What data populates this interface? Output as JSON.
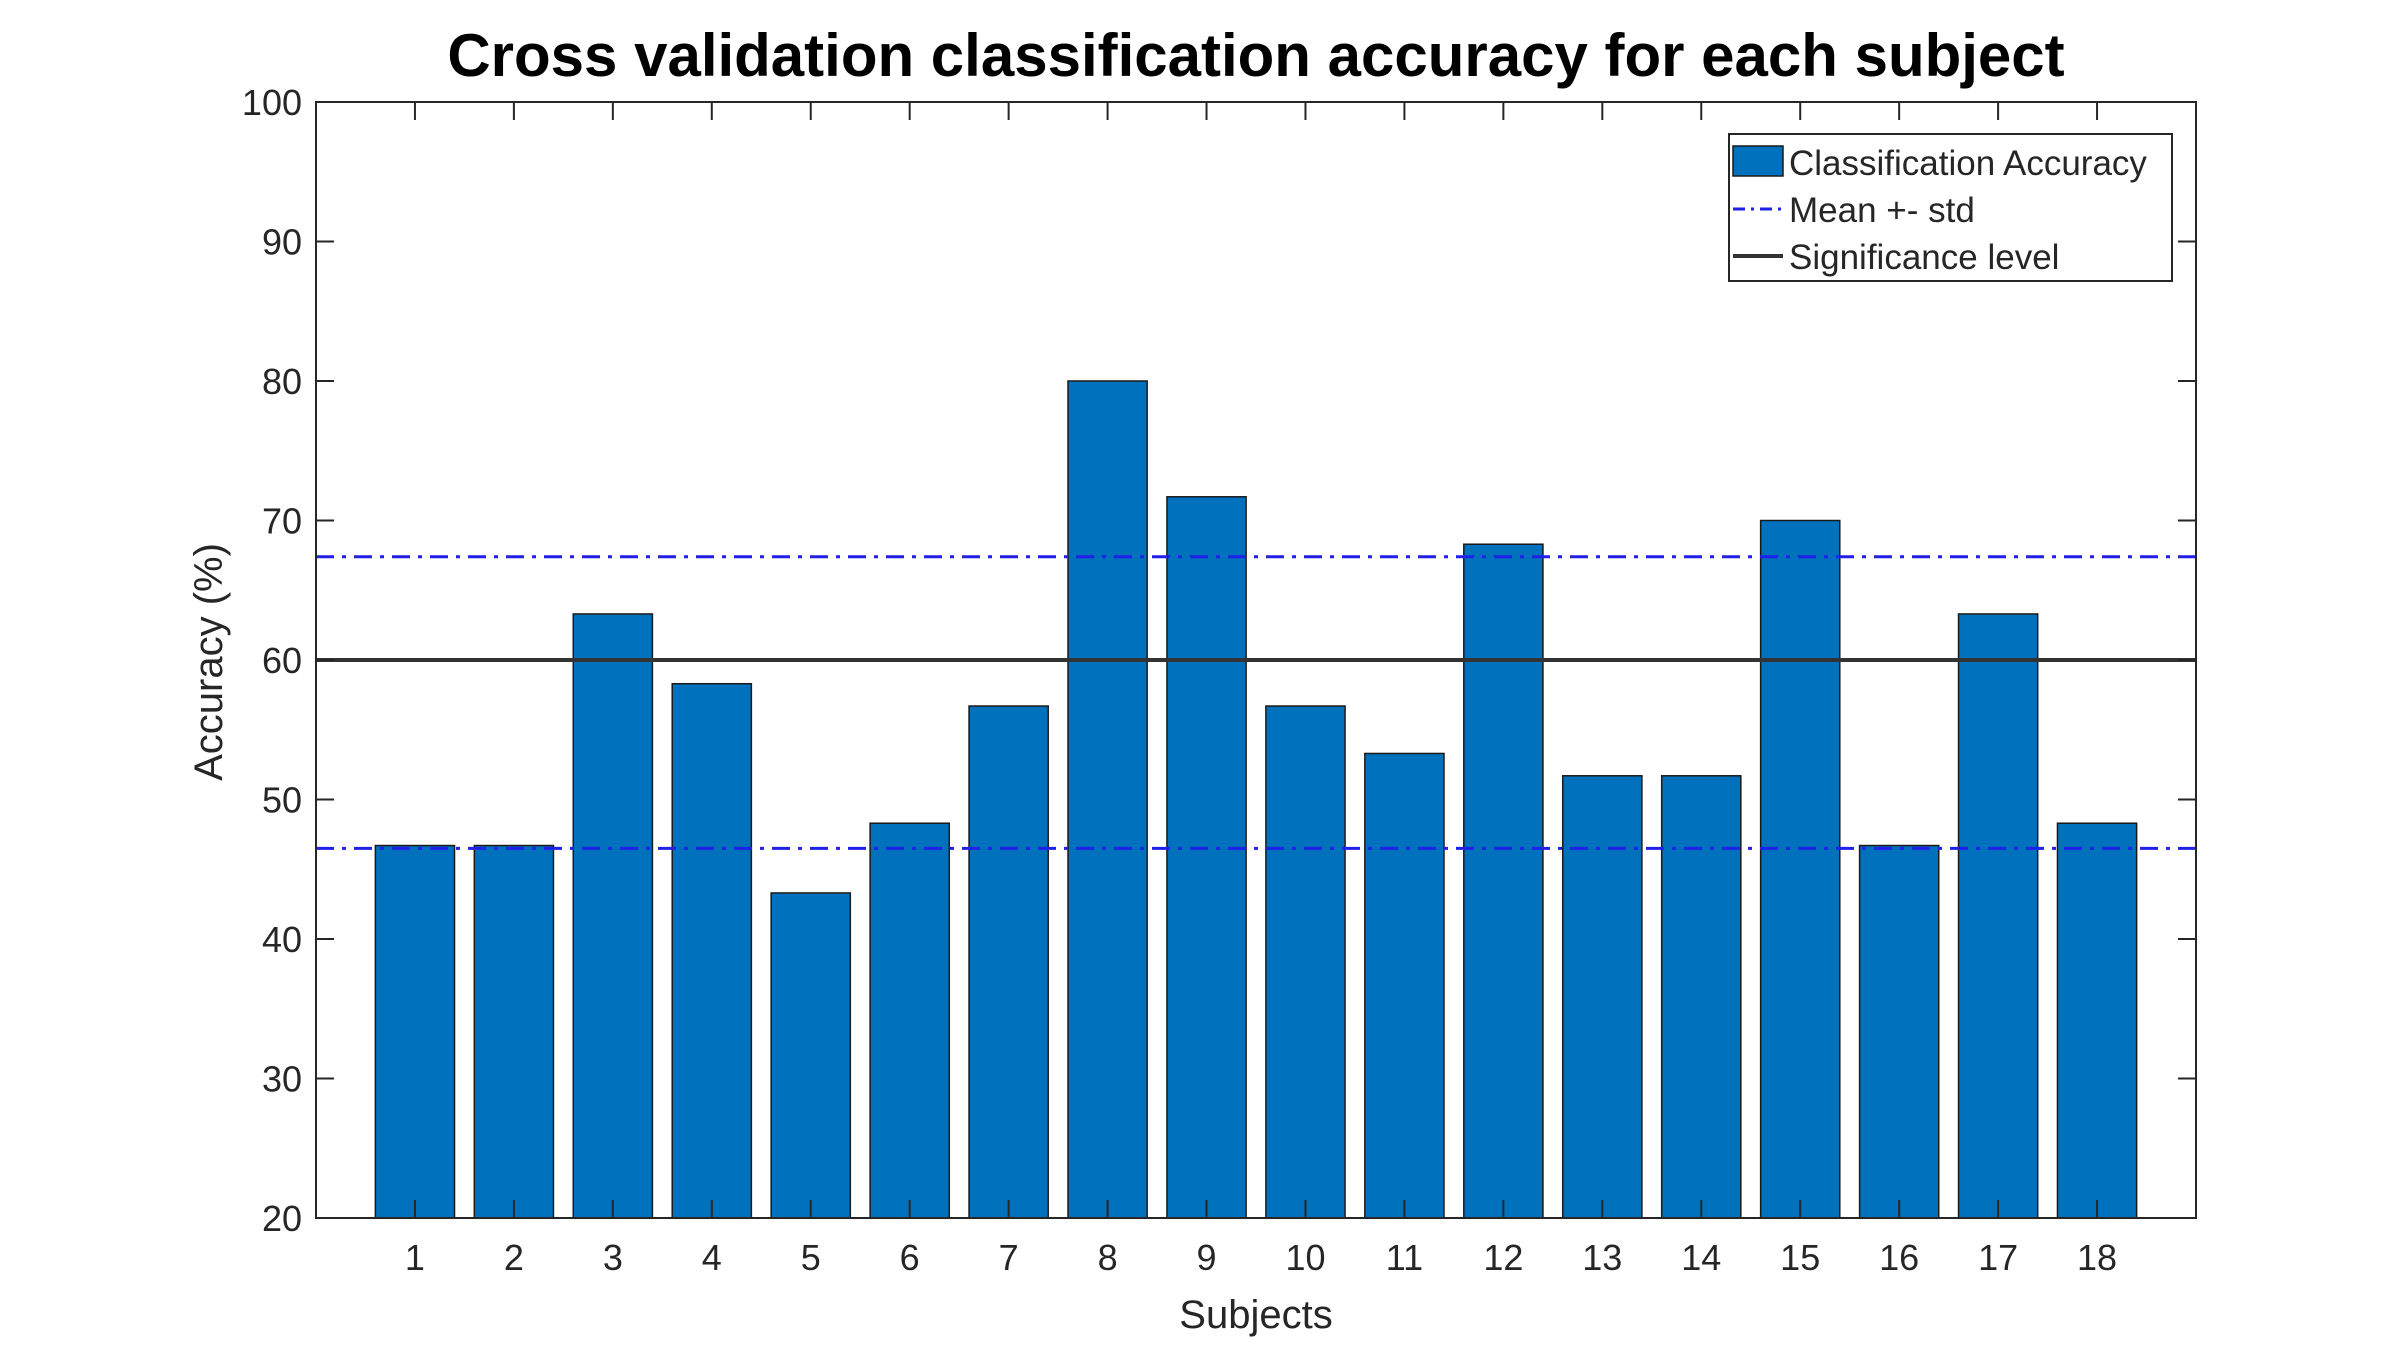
{
  "chart_data": {
    "type": "bar",
    "title": "Cross validation classification accuracy for each subject",
    "xlabel": "Subjects",
    "ylabel": "Accuracy (%)",
    "categories": [
      "1",
      "2",
      "3",
      "4",
      "5",
      "6",
      "7",
      "8",
      "9",
      "10",
      "11",
      "12",
      "13",
      "14",
      "15",
      "16",
      "17",
      "18"
    ],
    "series": [
      {
        "name": "Classification Accuracy",
        "values": [
          46.7,
          46.7,
          63.3,
          58.3,
          43.3,
          48.3,
          56.7,
          80.0,
          71.7,
          56.7,
          53.3,
          68.3,
          51.7,
          51.7,
          70.0,
          46.7,
          63.3,
          48.3
        ]
      }
    ],
    "reference_lines": [
      {
        "name": "Mean +- std",
        "style": "dash-dot",
        "color": "#2020e8",
        "values": [
          67.4,
          46.5
        ]
      },
      {
        "name": "Significance level",
        "style": "solid",
        "color": "#333333",
        "values": [
          60
        ]
      }
    ],
    "ylim": [
      20,
      100
    ],
    "yticks": [
      20,
      30,
      40,
      50,
      60,
      70,
      80,
      90,
      100
    ],
    "grid": false,
    "legend_position": "top-right",
    "bar_color": "#0072bd"
  }
}
